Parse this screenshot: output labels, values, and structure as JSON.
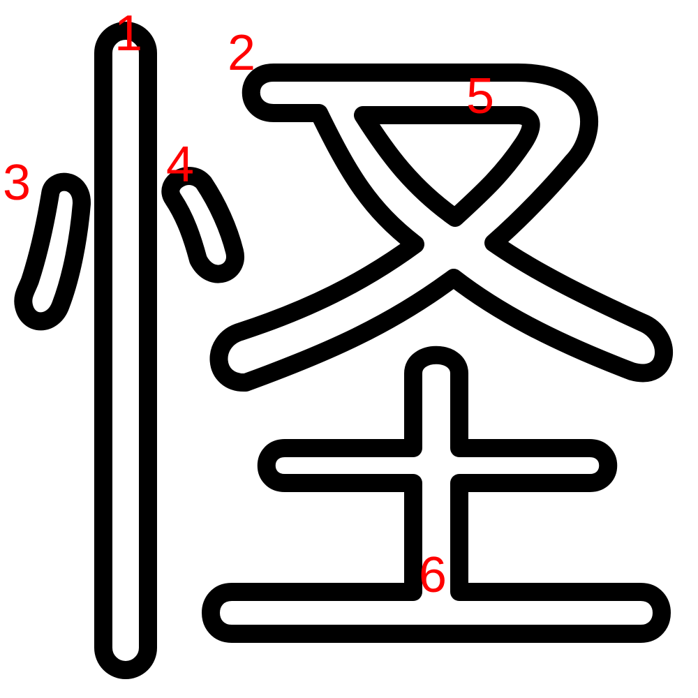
{
  "colors": {
    "outline": "#000000",
    "fill": "#ffffff",
    "label": "#ff0000"
  },
  "strokes": [
    {
      "number": "1"
    },
    {
      "number": "2"
    },
    {
      "number": "3"
    },
    {
      "number": "4"
    },
    {
      "number": "5"
    },
    {
      "number": "6"
    }
  ]
}
